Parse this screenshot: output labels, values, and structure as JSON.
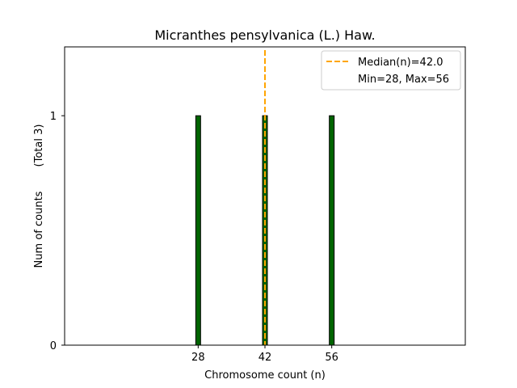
{
  "chart_data": {
    "type": "bar",
    "title": "Micranthes pensylvanica (L.) Haw.",
    "xlabel": "Chromosome count (n)",
    "ylabel": "Num of counts",
    "ylabel_total": "(Total 3)",
    "x_ticks": [
      28,
      42,
      56
    ],
    "y_ticks": [
      0,
      1
    ],
    "xlim": [
      0,
      84
    ],
    "ylim": [
      0,
      1.3
    ],
    "bar_color": "#006400",
    "bars": [
      {
        "x": 28,
        "value": 1
      },
      {
        "x": 42,
        "value": 1
      },
      {
        "x": 56,
        "value": 1
      }
    ],
    "median": {
      "value": 42.0,
      "label": "Median(n)=42.0",
      "color": "#FFA500"
    },
    "legend": {
      "position": "upper right",
      "entries": [
        "Median(n)=42.0",
        "Min=28, Max=56"
      ]
    },
    "grid": false
  }
}
